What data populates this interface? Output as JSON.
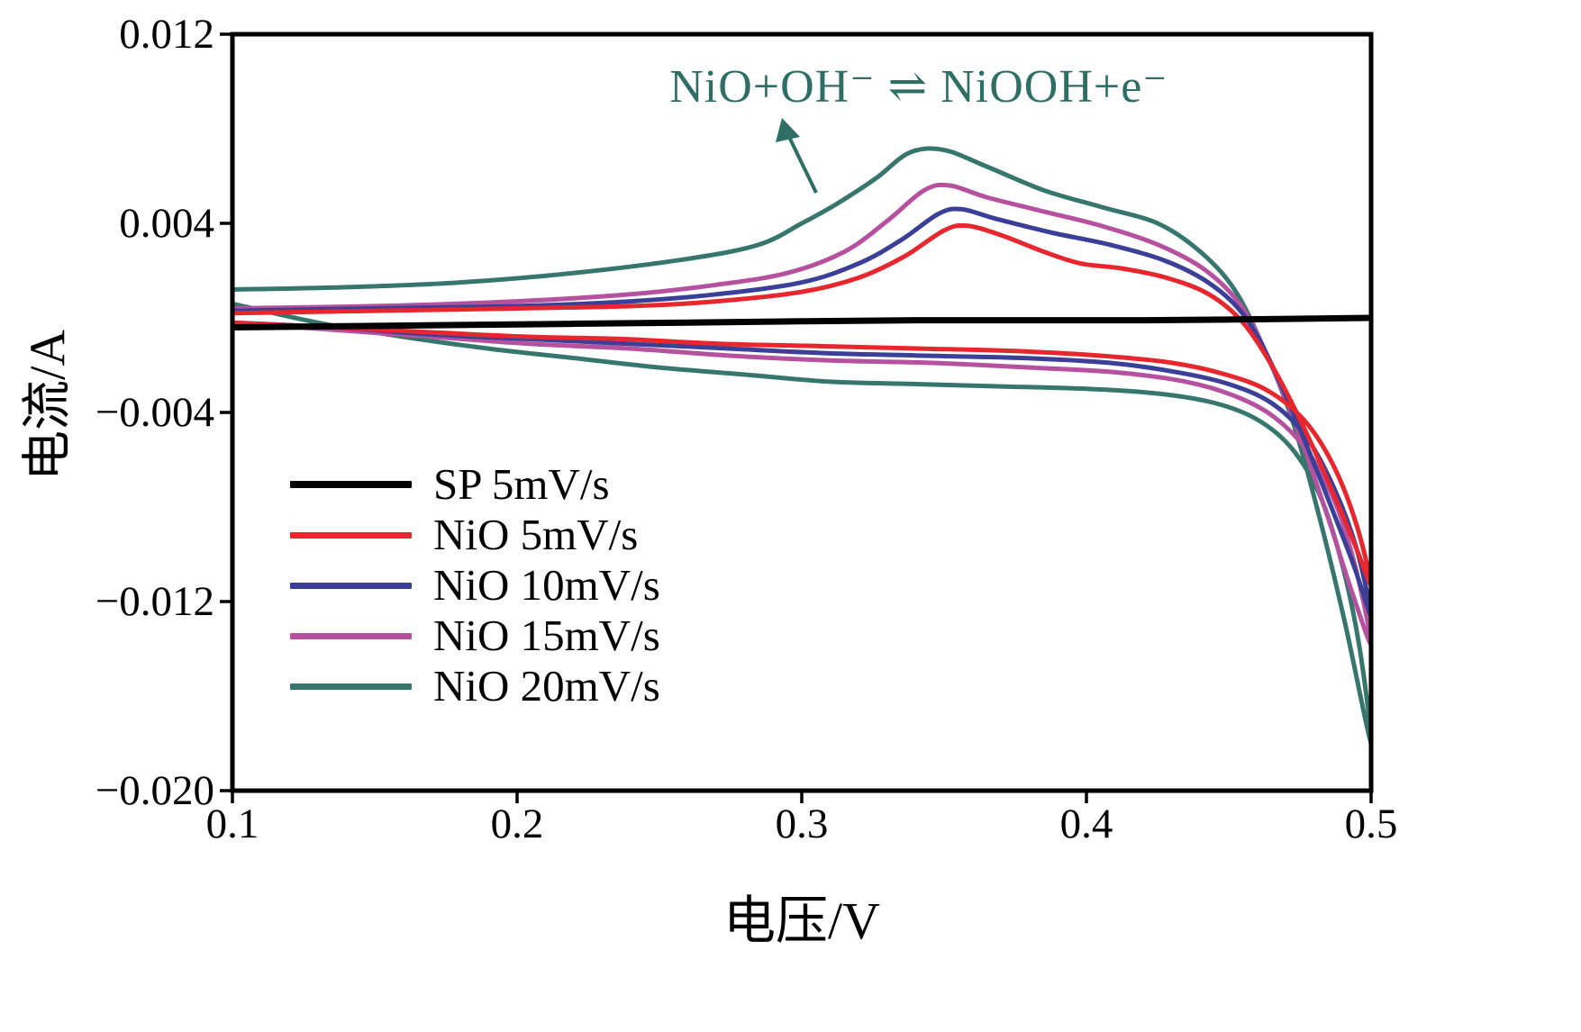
{
  "figure": {
    "background": "#ffffff",
    "axis_color": "#000000"
  },
  "chart_data": {
    "type": "line",
    "chart_kind": "cyclic-voltammetry",
    "title": "",
    "xlabel": "电压/V",
    "ylabel": "电流/A",
    "xlim": [
      0.1,
      0.5
    ],
    "ylim": [
      -0.02,
      0.012
    ],
    "x_ticks": [
      "0.1",
      "0.2",
      "0.3",
      "0.4",
      "0.5"
    ],
    "x_tick_values": [
      0.1,
      0.2,
      0.3,
      0.4,
      0.5
    ],
    "y_ticks": [
      "0.012",
      "0.004",
      "−0.004",
      "−0.012",
      "−0.020"
    ],
    "y_tick_values": [
      0.012,
      0.004,
      -0.004,
      -0.012,
      -0.02
    ],
    "grid": false,
    "legend_position": "center-left-lower",
    "annotation": {
      "text": "NiO+OH⁻ ⇌ NiOOH+e⁻",
      "color": "#2e6e64",
      "arrow": true
    },
    "series": [
      {
        "name": "SP 5mV/s",
        "color": "#000000",
        "width": 7,
        "points": [
          [
            0.1,
            -0.0004
          ],
          [
            0.18,
            -0.0003
          ],
          [
            0.26,
            -0.0002
          ],
          [
            0.34,
            -0.0001
          ],
          [
            0.42,
            -0.0001
          ],
          [
            0.5,
            0.0
          ]
        ]
      },
      {
        "name": "NiO 5mV/s",
        "color": "#e8262d",
        "width": 5,
        "points": [
          [
            0.1,
            0.0002
          ],
          [
            0.15,
            0.0003
          ],
          [
            0.2,
            0.0004
          ],
          [
            0.24,
            0.0005
          ],
          [
            0.27,
            0.0007
          ],
          [
            0.3,
            0.0011
          ],
          [
            0.32,
            0.0017
          ],
          [
            0.336,
            0.0026
          ],
          [
            0.35,
            0.0037
          ],
          [
            0.358,
            0.0039
          ],
          [
            0.37,
            0.0035
          ],
          [
            0.385,
            0.0028
          ],
          [
            0.398,
            0.0023
          ],
          [
            0.412,
            0.0021
          ],
          [
            0.428,
            0.0017
          ],
          [
            0.443,
            0.001
          ],
          [
            0.455,
            -0.0002
          ],
          [
            0.466,
            -0.0022
          ],
          [
            0.477,
            -0.0048
          ],
          [
            0.487,
            -0.0075
          ],
          [
            0.494,
            -0.0095
          ],
          [
            0.5,
            -0.0113
          ],
          [
            0.495,
            -0.0088
          ],
          [
            0.487,
            -0.0063
          ],
          [
            0.477,
            -0.0044
          ],
          [
            0.464,
            -0.0031
          ],
          [
            0.449,
            -0.0024
          ],
          [
            0.43,
            -0.0019
          ],
          [
            0.405,
            -0.0016
          ],
          [
            0.375,
            -0.0014
          ],
          [
            0.342,
            -0.0013
          ],
          [
            0.308,
            -0.0012
          ],
          [
            0.272,
            -0.0011
          ],
          [
            0.238,
            -0.0009
          ],
          [
            0.204,
            -0.0008
          ],
          [
            0.168,
            -0.0006
          ],
          [
            0.134,
            -0.0004
          ],
          [
            0.1,
            -0.0002
          ]
        ]
      },
      {
        "name": "NiO 10mV/s",
        "color": "#3b3f97",
        "width": 5,
        "points": [
          [
            0.1,
            0.0003
          ],
          [
            0.15,
            0.0004
          ],
          [
            0.2,
            0.0005
          ],
          [
            0.24,
            0.0007
          ],
          [
            0.27,
            0.001
          ],
          [
            0.3,
            0.0015
          ],
          [
            0.32,
            0.0023
          ],
          [
            0.335,
            0.0033
          ],
          [
            0.348,
            0.0044
          ],
          [
            0.356,
            0.0046
          ],
          [
            0.368,
            0.0042
          ],
          [
            0.388,
            0.0036
          ],
          [
            0.408,
            0.0031
          ],
          [
            0.428,
            0.0024
          ],
          [
            0.444,
            0.0014
          ],
          [
            0.456,
            0.0
          ],
          [
            0.466,
            -0.0022
          ],
          [
            0.476,
            -0.005
          ],
          [
            0.486,
            -0.008
          ],
          [
            0.494,
            -0.0105
          ],
          [
            0.5,
            -0.0126
          ],
          [
            0.495,
            -0.0098
          ],
          [
            0.487,
            -0.0072
          ],
          [
            0.477,
            -0.005
          ],
          [
            0.465,
            -0.0036
          ],
          [
            0.45,
            -0.0028
          ],
          [
            0.432,
            -0.0023
          ],
          [
            0.408,
            -0.0019
          ],
          [
            0.378,
            -0.0017
          ],
          [
            0.344,
            -0.0016
          ],
          [
            0.31,
            -0.0015
          ],
          [
            0.275,
            -0.0013
          ],
          [
            0.24,
            -0.0011
          ],
          [
            0.205,
            -0.0009
          ],
          [
            0.17,
            -0.0007
          ],
          [
            0.135,
            -0.0004
          ],
          [
            0.1,
            -0.0002
          ]
        ]
      },
      {
        "name": "NiO 15mV/s",
        "color": "#b5519f",
        "width": 5,
        "points": [
          [
            0.1,
            0.0004
          ],
          [
            0.15,
            0.0005
          ],
          [
            0.2,
            0.0007
          ],
          [
            0.24,
            0.001
          ],
          [
            0.27,
            0.0014
          ],
          [
            0.295,
            0.0019
          ],
          [
            0.315,
            0.0028
          ],
          [
            0.33,
            0.0041
          ],
          [
            0.343,
            0.0054
          ],
          [
            0.352,
            0.0056
          ],
          [
            0.365,
            0.0051
          ],
          [
            0.385,
            0.0045
          ],
          [
            0.405,
            0.0039
          ],
          [
            0.425,
            0.0031
          ],
          [
            0.442,
            0.002
          ],
          [
            0.455,
            0.0004
          ],
          [
            0.465,
            -0.002
          ],
          [
            0.475,
            -0.005
          ],
          [
            0.485,
            -0.0085
          ],
          [
            0.493,
            -0.0115
          ],
          [
            0.5,
            -0.0138
          ],
          [
            0.495,
            -0.0108
          ],
          [
            0.488,
            -0.008
          ],
          [
            0.478,
            -0.0057
          ],
          [
            0.466,
            -0.0042
          ],
          [
            0.452,
            -0.0033
          ],
          [
            0.435,
            -0.0027
          ],
          [
            0.41,
            -0.0023
          ],
          [
            0.38,
            -0.0021
          ],
          [
            0.345,
            -0.0019
          ],
          [
            0.31,
            -0.0018
          ],
          [
            0.275,
            -0.0016
          ],
          [
            0.24,
            -0.0013
          ],
          [
            0.205,
            -0.0011
          ],
          [
            0.17,
            -0.0008
          ],
          [
            0.135,
            -0.0005
          ],
          [
            0.1,
            -0.0002
          ]
        ]
      },
      {
        "name": "NiO 20mV/s",
        "color": "#37766d",
        "width": 5,
        "points": [
          [
            0.1,
            0.0012
          ],
          [
            0.14,
            0.0013
          ],
          [
            0.18,
            0.0015
          ],
          [
            0.22,
            0.0019
          ],
          [
            0.26,
            0.0025
          ],
          [
            0.285,
            0.0031
          ],
          [
            0.3,
            0.004
          ],
          [
            0.312,
            0.0048
          ],
          [
            0.326,
            0.0059
          ],
          [
            0.338,
            0.007
          ],
          [
            0.35,
            0.0071
          ],
          [
            0.365,
            0.0064
          ],
          [
            0.385,
            0.0054
          ],
          [
            0.405,
            0.0047
          ],
          [
            0.425,
            0.004
          ],
          [
            0.44,
            0.0028
          ],
          [
            0.452,
            0.0012
          ],
          [
            0.462,
            -0.0012
          ],
          [
            0.472,
            -0.0042
          ],
          [
            0.482,
            -0.0085
          ],
          [
            0.491,
            -0.013
          ],
          [
            0.5,
            -0.018
          ],
          [
            0.496,
            -0.014
          ],
          [
            0.49,
            -0.0105
          ],
          [
            0.482,
            -0.0075
          ],
          [
            0.472,
            -0.0055
          ],
          [
            0.46,
            -0.0043
          ],
          [
            0.445,
            -0.0036
          ],
          [
            0.425,
            -0.0032
          ],
          [
            0.4,
            -0.003
          ],
          [
            0.37,
            -0.0029
          ],
          [
            0.34,
            -0.0028
          ],
          [
            0.31,
            -0.0027
          ],
          [
            0.28,
            -0.0024
          ],
          [
            0.25,
            -0.0021
          ],
          [
            0.22,
            -0.0017
          ],
          [
            0.19,
            -0.0013
          ],
          [
            0.16,
            -0.0008
          ],
          [
            0.13,
            -0.0002
          ],
          [
            0.1,
            0.0006
          ]
        ]
      }
    ]
  }
}
